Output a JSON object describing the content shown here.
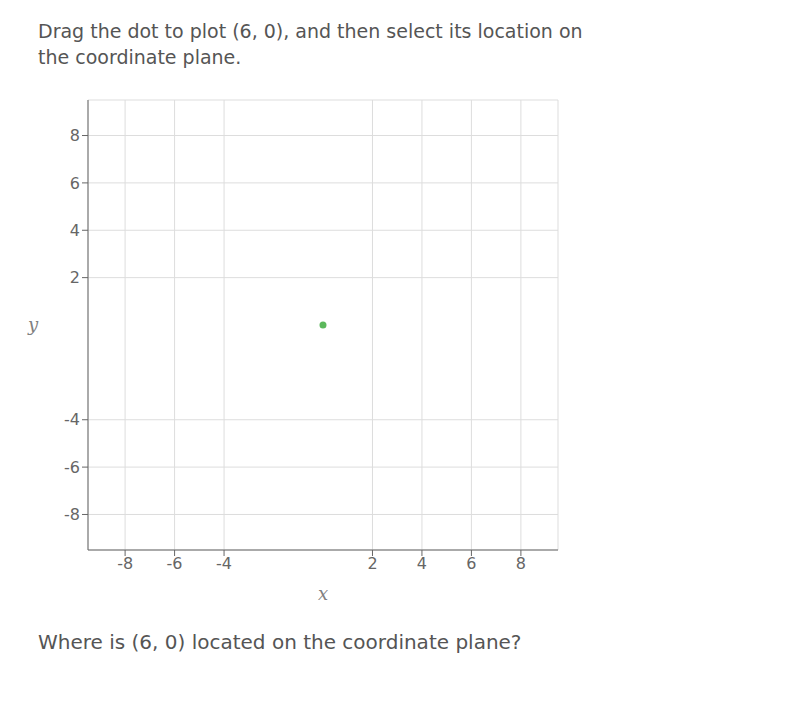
{
  "chart_data": {
    "type": "scatter",
    "title": "Drag the dot to plot (6, 0), and then select its location on\nthe coordinate plane.",
    "annotations": [
      "Where is (6, 0) located on the coordinate plane?"
    ],
    "x_label": "x",
    "y_label": "y",
    "x": [
      0
    ],
    "values": [
      0
    ],
    "color": "#5cb85c",
    "xlim": [
      -9.5,
      9.5
    ],
    "ylim": [
      -9.5,
      9.5
    ],
    "xticks": [
      -8,
      -6,
      -4,
      2,
      4,
      6,
      8
    ],
    "yticks": [
      -8,
      -6,
      -4,
      2,
      4,
      6,
      8
    ],
    "grid": true
  }
}
